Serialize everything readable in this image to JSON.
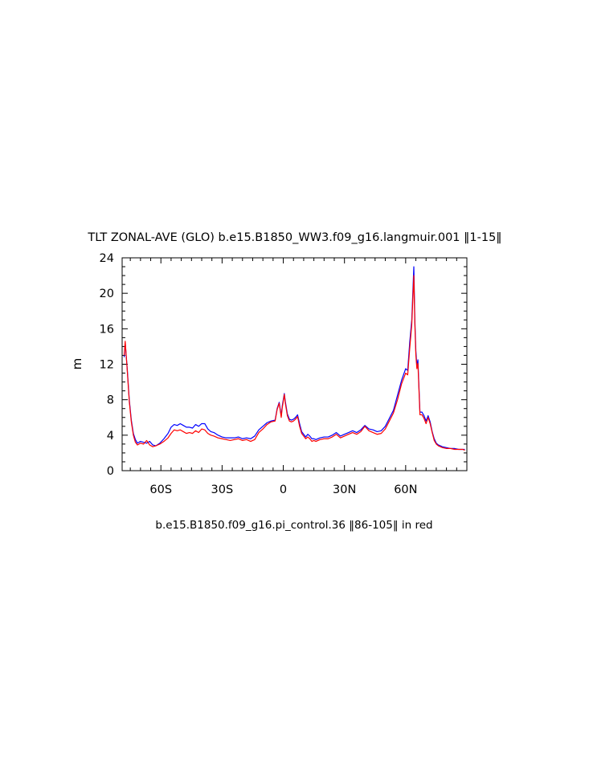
{
  "chart_data": {
    "type": "line",
    "title": "TLT ZONAL-AVE (GLO) b.e15.B1850_WW3.f09_g16.langmuir.001 ‖1-15‖",
    "subtitle": "b.e15.B1850.f09_g16.pi_control.36 ‖86-105‖ in red",
    "ylabel": "m",
    "xlabel": "",
    "xlim": [
      -79,
      90
    ],
    "ylim": [
      0,
      24
    ],
    "x_ticks": [
      {
        "value": -60,
        "label": "60S"
      },
      {
        "value": -30,
        "label": "30S"
      },
      {
        "value": 0,
        "label": "0"
      },
      {
        "value": 30,
        "label": "30N"
      },
      {
        "value": 60,
        "label": "60N"
      }
    ],
    "y_ticks": [
      {
        "value": 0,
        "label": "0"
      },
      {
        "value": 4,
        "label": "4"
      },
      {
        "value": 8,
        "label": "8"
      },
      {
        "value": 12,
        "label": "12"
      },
      {
        "value": 16,
        "label": "16"
      },
      {
        "value": 20,
        "label": "20"
      },
      {
        "value": 24,
        "label": "24"
      }
    ],
    "grid": false,
    "series": [
      {
        "color": "#0000ff",
        "x": [
          -78,
          -77.5,
          -76.5,
          -75.5,
          -74.5,
          -73.5,
          -72.5,
          -71.5,
          -70,
          -68.5,
          -67,
          -65.5,
          -64,
          -62.5,
          -60.5,
          -58.5,
          -56.5,
          -55,
          -53.5,
          -52,
          -50.5,
          -49,
          -47.5,
          -46,
          -44.5,
          -43,
          -41.5,
          -40,
          -38.5,
          -37,
          -35.5,
          -34,
          -32,
          -30,
          -28,
          -26,
          -24,
          -22,
          -20,
          -18,
          -16,
          -14,
          -12,
          -10,
          -8,
          -6,
          -4,
          -3,
          -2,
          -1,
          -0.5,
          0,
          0.5,
          1,
          2,
          3,
          4,
          5,
          6,
          7,
          8,
          9,
          10,
          11,
          12,
          13,
          14,
          15,
          16,
          18,
          20,
          22,
          24,
          26,
          28,
          30,
          32,
          34,
          36,
          38,
          40,
          42,
          44,
          46,
          48,
          50,
          52,
          54,
          56,
          58,
          60,
          61,
          62,
          63,
          64,
          64.5,
          65,
          65.5,
          66,
          67,
          68,
          69,
          70,
          71,
          72,
          73,
          74,
          75,
          76,
          78,
          80,
          82,
          84,
          86,
          88,
          89
        ],
        "y": [
          12.8,
          14.4,
          11.5,
          8.0,
          5.7,
          4.2,
          3.5,
          3.1,
          3.3,
          3.2,
          3.1,
          3.3,
          2.9,
          2.8,
          3.1,
          3.6,
          4.2,
          4.9,
          5.2,
          5.1,
          5.3,
          5.1,
          4.9,
          4.9,
          4.8,
          5.2,
          5.0,
          5.3,
          5.3,
          4.7,
          4.4,
          4.3,
          4.0,
          3.8,
          3.7,
          3.7,
          3.7,
          3.8,
          3.6,
          3.7,
          3.6,
          3.9,
          4.6,
          5.0,
          5.4,
          5.6,
          5.7,
          7.0,
          7.7,
          6.2,
          7.3,
          8.0,
          8.7,
          7.8,
          6.4,
          5.8,
          5.7,
          5.8,
          6.0,
          6.3,
          5.3,
          4.4,
          4.1,
          3.8,
          4.1,
          3.9,
          3.6,
          3.6,
          3.5,
          3.7,
          3.8,
          3.8,
          4.0,
          4.3,
          3.9,
          4.1,
          4.3,
          4.5,
          4.3,
          4.6,
          5.1,
          4.7,
          4.6,
          4.4,
          4.5,
          5.0,
          5.9,
          6.8,
          8.5,
          10.2,
          11.5,
          11.3,
          14.5,
          17.0,
          23.0,
          17.0,
          13.5,
          11.8,
          12.5,
          6.6,
          6.6,
          6.2,
          5.6,
          6.2,
          5.5,
          4.4,
          3.6,
          3.1,
          2.9,
          2.7,
          2.6,
          2.5,
          2.5,
          2.4,
          2.4,
          2.4
        ]
      },
      {
        "color": "#ff0000",
        "x": [
          -78,
          -77.5,
          -76.5,
          -75.5,
          -74.5,
          -73.5,
          -72.5,
          -71.5,
          -70,
          -68.5,
          -67,
          -65.5,
          -64,
          -62.5,
          -60.5,
          -58.5,
          -56.5,
          -55,
          -53.5,
          -52,
          -50.5,
          -49,
          -47.5,
          -46,
          -44.5,
          -43,
          -41.5,
          -40,
          -38.5,
          -37,
          -35.5,
          -34,
          -32,
          -30,
          -28,
          -26,
          -24,
          -22,
          -20,
          -18,
          -16,
          -14,
          -12,
          -10,
          -8,
          -6,
          -4,
          -3,
          -2,
          -1,
          -0.5,
          0,
          0.5,
          1,
          2,
          3,
          4,
          5,
          6,
          7,
          8,
          9,
          10,
          11,
          12,
          13,
          14,
          15,
          16,
          18,
          20,
          22,
          24,
          26,
          28,
          30,
          32,
          34,
          36,
          38,
          40,
          42,
          44,
          46,
          48,
          50,
          52,
          54,
          56,
          58,
          60,
          61,
          62,
          63,
          64,
          64.5,
          65,
          65.5,
          66,
          67,
          68,
          69,
          70,
          71,
          72,
          73,
          74,
          75,
          76,
          78,
          80,
          82,
          84,
          86,
          88,
          89
        ],
        "y": [
          13.0,
          14.6,
          11.3,
          7.8,
          5.5,
          4.0,
          3.2,
          2.9,
          3.1,
          3.0,
          3.4,
          2.9,
          2.7,
          2.8,
          3.0,
          3.3,
          3.7,
          4.2,
          4.6,
          4.5,
          4.6,
          4.4,
          4.2,
          4.3,
          4.2,
          4.5,
          4.3,
          4.7,
          4.6,
          4.2,
          4.0,
          3.9,
          3.7,
          3.6,
          3.5,
          3.4,
          3.5,
          3.6,
          3.4,
          3.5,
          3.3,
          3.5,
          4.3,
          4.7,
          5.2,
          5.5,
          5.6,
          6.9,
          7.6,
          6.0,
          7.1,
          7.8,
          8.6,
          7.6,
          6.2,
          5.6,
          5.5,
          5.6,
          5.8,
          6.1,
          5.0,
          4.2,
          3.9,
          3.6,
          3.8,
          3.6,
          3.3,
          3.4,
          3.3,
          3.5,
          3.6,
          3.6,
          3.8,
          4.1,
          3.7,
          3.9,
          4.1,
          4.3,
          4.1,
          4.4,
          5.0,
          4.5,
          4.3,
          4.1,
          4.2,
          4.7,
          5.6,
          6.5,
          8.0,
          9.8,
          11.0,
          10.8,
          13.8,
          16.5,
          22.0,
          16.5,
          13.0,
          11.5,
          12.1,
          6.3,
          6.3,
          5.9,
          5.3,
          6.0,
          5.3,
          4.3,
          3.4,
          3.0,
          2.8,
          2.6,
          2.5,
          2.5,
          2.4,
          2.4,
          2.4,
          2.3
        ]
      }
    ]
  }
}
